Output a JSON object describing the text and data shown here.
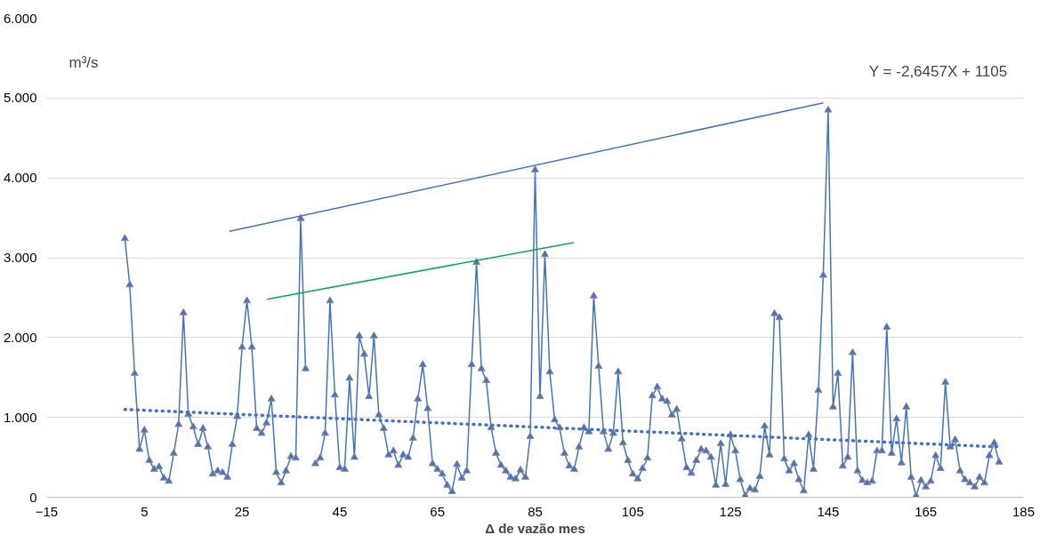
{
  "chart_data": {
    "type": "line",
    "xlabel": "Δ de vazão mes",
    "ylabel": "m³/s",
    "annotations": [
      "Y = -2,6457X + 1105"
    ],
    "x": [
      1,
      2,
      3,
      4,
      5,
      6,
      7,
      8,
      9,
      10,
      11,
      12,
      13,
      14,
      15,
      16,
      17,
      18,
      19,
      20,
      21,
      22,
      23,
      24,
      25,
      26,
      27,
      28,
      29,
      30,
      31,
      32,
      33,
      34,
      35,
      36,
      37,
      38,
      39,
      40,
      41,
      42,
      43,
      44,
      45,
      46,
      47,
      48,
      49,
      50,
      51,
      52,
      53,
      54,
      55,
      56,
      57,
      58,
      59,
      60,
      61,
      62,
      63,
      64,
      65,
      66,
      67,
      68,
      69,
      70,
      71,
      72,
      73,
      74,
      75,
      76,
      77,
      78,
      79,
      80,
      81,
      82,
      83,
      84,
      85,
      86,
      87,
      88,
      89,
      90,
      91,
      92,
      93,
      94,
      95,
      96,
      97,
      98,
      99,
      100,
      101,
      102,
      103,
      104,
      105,
      106,
      107,
      108,
      109,
      110,
      111,
      112,
      113,
      114,
      115,
      116,
      117,
      118,
      119,
      120,
      121,
      122,
      123,
      124,
      125,
      126,
      127,
      128,
      129,
      130,
      131,
      132,
      133,
      134,
      135,
      136,
      137,
      138,
      139,
      140,
      141,
      142,
      143,
      144,
      145,
      146,
      147,
      148,
      149,
      150,
      151,
      152,
      153,
      154,
      155,
      156,
      157,
      158,
      159,
      160,
      161,
      162,
      163,
      164,
      165,
      166,
      167,
      168,
      169,
      170,
      171,
      172,
      173,
      174,
      175,
      176,
      177,
      178,
      179,
      180
    ],
    "series": [
      {
        "color": "#4472c4",
        "marker": "triangle",
        "values": [
          3240,
          2660,
          1550,
          600,
          840,
          460,
          350,
          380,
          240,
          200,
          550,
          910,
          2310,
          1040,
          880,
          660,
          860,
          630,
          290,
          330,
          310,
          250,
          660,
          1010,
          1880,
          2460,
          1880,
          860,
          800,
          930,
          1230,
          310,
          180,
          330,
          510,
          490,
          3490,
          1610,
          null,
          420,
          490,
          800,
          2460,
          1280,
          370,
          350,
          1490,
          500,
          2020,
          1790,
          1260,
          2020,
          1030,
          860,
          530,
          580,
          400,
          530,
          500,
          740,
          1230,
          1660,
          1110,
          420,
          350,
          290,
          150,
          70,
          410,
          240,
          330,
          1660,
          2940,
          1610,
          1460,
          870,
          550,
          400,
          330,
          250,
          230,
          340,
          250,
          760,
          4100,
          1260,
          3040,
          1570,
          970,
          870,
          550,
          390,
          350,
          630,
          870,
          820,
          2520,
          1640,
          820,
          600,
          800,
          1570,
          680,
          460,
          290,
          230,
          360,
          490,
          1270,
          1380,
          1230,
          1200,
          1030,
          1100,
          730,
          370,
          300,
          460,
          600,
          580,
          500,
          150,
          670,
          160,
          780,
          580,
          220,
          20,
          110,
          90,
          260,
          890,
          530,
          2300,
          2250,
          480,
          330,
          420,
          220,
          80,
          780,
          350,
          1340,
          2780,
          4850,
          1130,
          1550,
          390,
          500,
          1810,
          330,
          210,
          180,
          200,
          580,
          580,
          2130,
          550,
          980,
          430,
          1130,
          250,
          20,
          210,
          130,
          200,
          520,
          360,
          1440,
          630,
          720,
          330,
          220,
          180,
          130,
          250,
          180,
          520,
          680,
          440
        ]
      },
      {
        "color": "#4472c4",
        "line_style": "dotted",
        "marker": "none",
        "x": [
          1,
          180
        ],
        "values": [
          1100,
          630
        ]
      },
      {
        "color": "#4472c4",
        "marker": "none",
        "x": [
          22.4,
          144
        ],
        "values": [
          3330,
          4940
        ]
      },
      {
        "color": "#00b050",
        "marker": "none",
        "x": [
          30.1,
          92.9
        ],
        "values": [
          2480,
          3190
        ]
      }
    ],
    "xlim": [
      -15,
      185
    ],
    "xticks": [
      -15,
      5,
      25,
      45,
      65,
      85,
      105,
      125,
      145,
      165,
      185
    ],
    "ylim": [
      0,
      6000
    ],
    "yticks": [
      {
        "value": 0,
        "label": "0"
      },
      {
        "value": 1000,
        "label": "1.000"
      },
      {
        "value": 2000,
        "label": "2.000"
      },
      {
        "value": 3000,
        "label": "3.000"
      },
      {
        "value": 4000,
        "label": "4.000"
      },
      {
        "value": 5000,
        "label": "5.000"
      },
      {
        "value": 6000,
        "label": "6.000"
      }
    ],
    "grid": "y",
    "line_style": "solid"
  }
}
